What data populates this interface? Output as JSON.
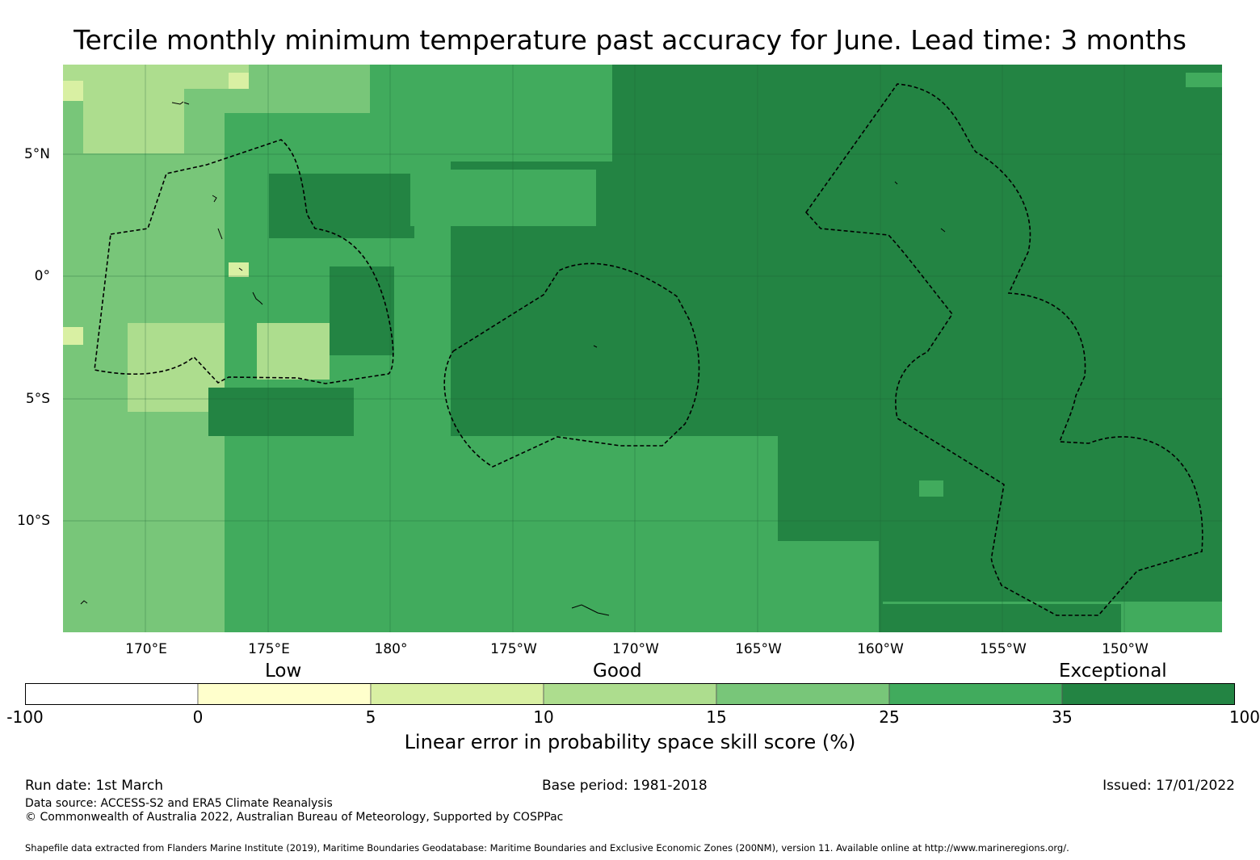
{
  "title": "Tercile monthly minimum temperature past accuracy for June. Lead time: 3 months",
  "map": {
    "lat_labels": [
      "5°N",
      "0°",
      "5°S",
      "10°S"
    ],
    "lon_labels": [
      "170°E",
      "175°E",
      "180°",
      "175°W",
      "170°W",
      "165°W",
      "160°W",
      "155°W",
      "150°W"
    ],
    "lon_range": [
      166.6,
      214.0
    ],
    "lat_range": [
      -14.5,
      8.7
    ]
  },
  "legend": {
    "categories": [
      "Low",
      "Good",
      "Exceptional"
    ],
    "ticks": [
      "-100",
      "0",
      "5",
      "10",
      "15",
      "25",
      "35",
      "100"
    ],
    "colors": [
      "#ffffff",
      "#ffffcc",
      "#d9f0a3",
      "#addd8e",
      "#78c679",
      "#41ab5d",
      "#238443"
    ],
    "label": "Linear error in probability space skill score (%)"
  },
  "footer": {
    "run_date": "Run date: 1st March",
    "base_period": "Base period: 1981-2018",
    "issued": "Issued: 17/01/2022",
    "data_source": "Data source: ACCESS-S2 and ERA5 Climate Reanalysis",
    "copyright": "© Commonwealth of Australia 2022, Australian Bureau of Meteorology, Supported by COSPPac",
    "shapefile": "Shapefile data extracted from Flanders Marine Institute (2019), Maritime Boundaries Geodatabase: Maritime Boundaries and Exclusive Economic Zones (200NM), version 11. Available online at http://www.marineregions.org/."
  }
}
